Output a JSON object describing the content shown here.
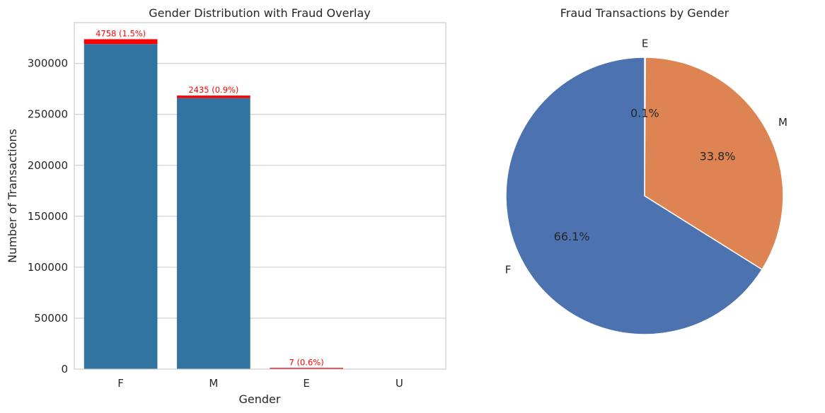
{
  "chart_data": [
    {
      "type": "bar",
      "title": "Gender Distribution with Fraud Overlay",
      "xlabel": "Gender",
      "ylabel": "Number of Transactions",
      "categories": [
        "F",
        "M",
        "E",
        "U"
      ],
      "values": [
        319000,
        266000,
        1200,
        0
      ],
      "fraud_overlay": {
        "values": [
          4758,
          2435,
          7,
          0
        ],
        "labels": [
          "4758 (1.5%)",
          "2435 (0.9%)",
          "7 (0.6%)",
          ""
        ],
        "color": "#ff0000"
      },
      "ylim": [
        0,
        340000
      ],
      "yticks": [
        0,
        50000,
        100000,
        150000,
        200000,
        250000,
        300000
      ],
      "ytick_labels": [
        "0",
        "50000",
        "100000",
        "150000",
        "200000",
        "250000",
        "300000"
      ],
      "bar_color": "#3274a1",
      "grid": true
    },
    {
      "type": "pie",
      "title": "Fraud Transactions by Gender",
      "labels": [
        "E",
        "M",
        "F"
      ],
      "values": [
        7,
        2435,
        4758
      ],
      "percent_labels": [
        "0.1%",
        "33.8%",
        "66.1%"
      ],
      "colors": [
        "#55a868",
        "#dd8452",
        "#4c72b0"
      ]
    }
  ]
}
